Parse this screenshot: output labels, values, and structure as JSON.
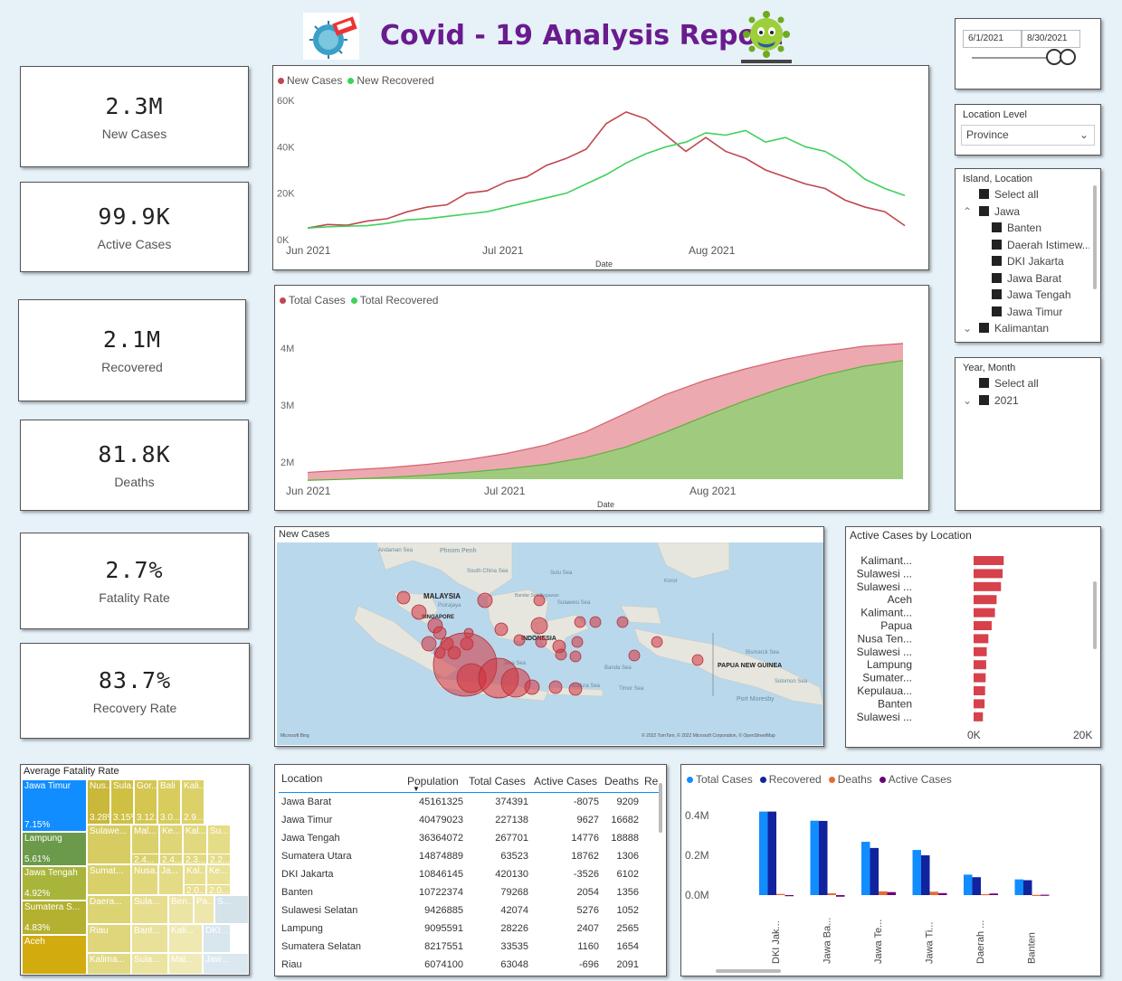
{
  "report_title": "Covid - 19 Analysis Report",
  "logos": {
    "left": "covid-stop-logo",
    "right": "virus-mascot-logo"
  },
  "kpis": [
    {
      "value": "2.3M",
      "label": "New Cases"
    },
    {
      "value": "99.9K",
      "label": "Active Cases"
    },
    {
      "value": "2.1M",
      "label": "Recovered"
    },
    {
      "value": "81.8K",
      "label": "Deaths"
    },
    {
      "value": "2.7%",
      "label": "Fatality Rate"
    },
    {
      "value": "83.7%",
      "label": "Recovery Rate"
    }
  ],
  "date_slicer": {
    "start": "6/1/2021",
    "end": "8/30/2021"
  },
  "location_level": {
    "title": "Location Level",
    "value": "Province"
  },
  "island_slicer": {
    "title": "Island, Location",
    "items": [
      "Select all",
      "Jawa",
      "Banten",
      "Daerah Istimew...",
      "DKI Jakarta",
      "Jawa Barat",
      "Jawa Tengah",
      "Jawa Timur",
      "Kalimantan"
    ]
  },
  "year_slicer": {
    "title": "Year, Month",
    "items": [
      "Select all",
      "2021"
    ]
  },
  "map": {
    "title": "New Cases",
    "labels": [
      "MALAYSIA",
      "SINGAPORE",
      "INDONESIA",
      "PAPUA NEW GUINEA",
      "Andaman Sea",
      "Phnom Penh",
      "South China Sea",
      "Sulu Sea",
      "Koror",
      "Bandar Seri Begawan",
      "Sulawesi Sea",
      "Putrajaya",
      "Java Sea",
      "Banda Sea",
      "Bismarck Sea",
      "Solomon Sea",
      "Port Moresby",
      "Timor Sea",
      "Arafura Sea"
    ],
    "attribution_left": "Microsoft Bing",
    "attribution_right": "© 2022 TomTom, © 2022 Microsoft Corporation, © OpenStreetMap"
  },
  "active_by_location": {
    "title": "Active Cases by Location",
    "axis": [
      "0K",
      "20K"
    ]
  },
  "treemap": {
    "title": "Average Fatality Rate",
    "cells": [
      {
        "name": "Jawa Timur",
        "value": "7.15%",
        "color": "#118dff"
      },
      {
        "name": "Lampung",
        "value": "5.61%",
        "color": "#6b9a4a"
      },
      {
        "name": "Jawa Tengah",
        "value": "4.92%",
        "color": "#a9b53a"
      },
      {
        "name": "Sumatera S...",
        "value": "4.83%",
        "color": "#b3b12f"
      },
      {
        "name": "Aceh",
        "value": "",
        "color": "#d2ac0f"
      },
      {
        "name": "Nus...",
        "value": "3.28%",
        "color": "#c9b83a"
      },
      {
        "name": "Sula...",
        "value": "3.15%",
        "color": "#cfc043"
      },
      {
        "name": "Gor...",
        "value": "3.12...",
        "color": "#d4c651"
      },
      {
        "name": "Bali",
        "value": "3.0...",
        "color": "#d8cc5d"
      },
      {
        "name": "Kali...",
        "value": "2.9...",
        "color": "#dcd068"
      }
    ],
    "small_labels": [
      "Sulawe...",
      "Mal...",
      "Ke...",
      "Kal...",
      "Su...",
      "2.4...",
      "2.4...",
      "2.3...",
      "2.2...",
      "Sumat...",
      "Nusa...",
      "Ja...",
      "Kal...",
      "Ke...",
      "2.0...",
      "2.0...",
      "Daera...",
      "Sula...",
      "Ben...",
      "Pa...",
      "S...",
      "Riau",
      "Bant...",
      "Kali...",
      "DKI...",
      "Kalima...",
      "Sula...",
      "Mal...",
      "Jaw..."
    ]
  },
  "table": {
    "headers": [
      "Location",
      "Population",
      "Total Cases",
      "Active Cases",
      "Deaths",
      "Re"
    ],
    "rows": [
      [
        "Jawa Barat",
        "45161325",
        "374391",
        "-8075",
        "9209"
      ],
      [
        "Jawa Timur",
        "40479023",
        "227138",
        "9627",
        "16682"
      ],
      [
        "Jawa Tengah",
        "36364072",
        "267701",
        "14776",
        "18888"
      ],
      [
        "Sumatera Utara",
        "14874889",
        "63523",
        "18762",
        "1306"
      ],
      [
        "DKI Jakarta",
        "10846145",
        "420130",
        "-3526",
        "6102"
      ],
      [
        "Banten",
        "10722374",
        "79268",
        "2054",
        "1356"
      ],
      [
        "Sulawesi Selatan",
        "9426885",
        "42074",
        "5276",
        "1052"
      ],
      [
        "Lampung",
        "9095591",
        "28226",
        "2407",
        "2565"
      ],
      [
        "Sumatera Selatan",
        "8217551",
        "33535",
        "1160",
        "1654"
      ],
      [
        "Riau",
        "6074100",
        "63048",
        "-696",
        "2091"
      ]
    ]
  },
  "colors": {
    "red": "#c0474f",
    "green": "#3fd15a",
    "blue": "#118dff",
    "navy": "#12239e",
    "orange": "#e66c37",
    "purple": "#6b007b",
    "title_purple": "#6a1b8e"
  },
  "chart_data": [
    {
      "type": "line",
      "xlabel": "Date",
      "ylabel": "",
      "ylim": [
        0,
        60000
      ],
      "y_ticks": [
        "0K",
        "20K",
        "40K",
        "60K"
      ],
      "x_ticks": [
        "Jun 2021",
        "Jul 2021",
        "Aug 2021"
      ],
      "x": [
        "Jun 1",
        "Jun 4",
        "Jun 7",
        "Jun 10",
        "Jun 13",
        "Jun 16",
        "Jun 19",
        "Jun 22",
        "Jun 25",
        "Jun 28",
        "Jul 1",
        "Jul 4",
        "Jul 7",
        "Jul 10",
        "Jul 13",
        "Jul 16",
        "Jul 19",
        "Jul 22",
        "Jul 25",
        "Jul 28",
        "Jul 31",
        "Aug 3",
        "Aug 6",
        "Aug 9",
        "Aug 12",
        "Aug 15",
        "Aug 18",
        "Aug 21",
        "Aug 24",
        "Aug 27",
        "Aug 30"
      ],
      "series": [
        {
          "name": "New Cases",
          "values": [
            5000,
            6500,
            6200,
            8000,
            9000,
            12000,
            14000,
            15000,
            20000,
            21000,
            25000,
            27000,
            32000,
            35000,
            39000,
            50000,
            55000,
            52000,
            45000,
            38000,
            44000,
            38000,
            35000,
            30000,
            27000,
            24000,
            22000,
            17000,
            14000,
            12000,
            6000
          ]
        },
        {
          "name": "New Recovered",
          "values": [
            5000,
            5500,
            5800,
            6000,
            7000,
            8500,
            9000,
            10000,
            11000,
            12000,
            14000,
            16000,
            18000,
            20000,
            24000,
            28000,
            33000,
            37000,
            40000,
            42000,
            46000,
            45000,
            47000,
            42000,
            44000,
            40000,
            38000,
            33000,
            26000,
            22000,
            19000
          ]
        }
      ]
    },
    {
      "type": "area",
      "xlabel": "Date",
      "ylabel": "",
      "ylim": [
        1700000,
        4300000
      ],
      "y_ticks": [
        "2M",
        "3M",
        "4M"
      ],
      "x_ticks": [
        "Jun 2021",
        "Jul 2021",
        "Aug 2021"
      ],
      "series": [
        {
          "name": "Total Cases",
          "values": [
            1820000,
            1860000,
            1900000,
            1960000,
            2040000,
            2150000,
            2300000,
            2530000,
            2850000,
            3180000,
            3430000,
            3630000,
            3800000,
            3930000,
            4030000,
            4080000
          ]
        },
        {
          "name": "Total Recovered",
          "values": [
            1680000,
            1700000,
            1730000,
            1770000,
            1820000,
            1880000,
            1960000,
            2080000,
            2260000,
            2520000,
            2800000,
            3070000,
            3310000,
            3520000,
            3680000,
            3780000
          ]
        }
      ]
    },
    {
      "type": "bar",
      "title": "Active Cases by Location",
      "categories": [
        "Kalimant...",
        "Sulawesi ...",
        "Sulawesi ...",
        "Aceh",
        "Kalimant...",
        "Papua",
        "Nusa Ten...",
        "Sulawesi ...",
        "Lampung",
        "Sumater...",
        "Kepulaua...",
        "Banten",
        "Sulawesi ..."
      ],
      "values": [
        5500,
        5300,
        5000,
        4200,
        3900,
        3300,
        2700,
        2400,
        2300,
        2200,
        2100,
        2000,
        1700
      ],
      "xlim": [
        0,
        20000
      ]
    },
    {
      "type": "bar",
      "categories": [
        "DKI Jak...",
        "Jawa Ba...",
        "Jawa Te...",
        "Jawa Ti...",
        "Daerah ...",
        "Banten"
      ],
      "y_ticks": [
        "0.0M",
        "0.2M",
        "0.4M"
      ],
      "ylim": [
        0,
        0.45
      ],
      "series": [
        {
          "name": "Total Cases",
          "values": [
            0.42,
            0.374,
            0.268,
            0.227,
            0.103,
            0.079
          ]
        },
        {
          "name": "Recovered",
          "values": [
            0.42,
            0.373,
            0.237,
            0.2,
            0.09,
            0.075
          ]
        },
        {
          "name": "Deaths",
          "values": [
            0.006,
            0.009,
            0.019,
            0.017,
            0.005,
            0.001
          ]
        },
        {
          "name": "Active Cases",
          "values": [
            -0.004,
            -0.008,
            0.015,
            0.01,
            0.008,
            0.002
          ]
        }
      ]
    }
  ]
}
